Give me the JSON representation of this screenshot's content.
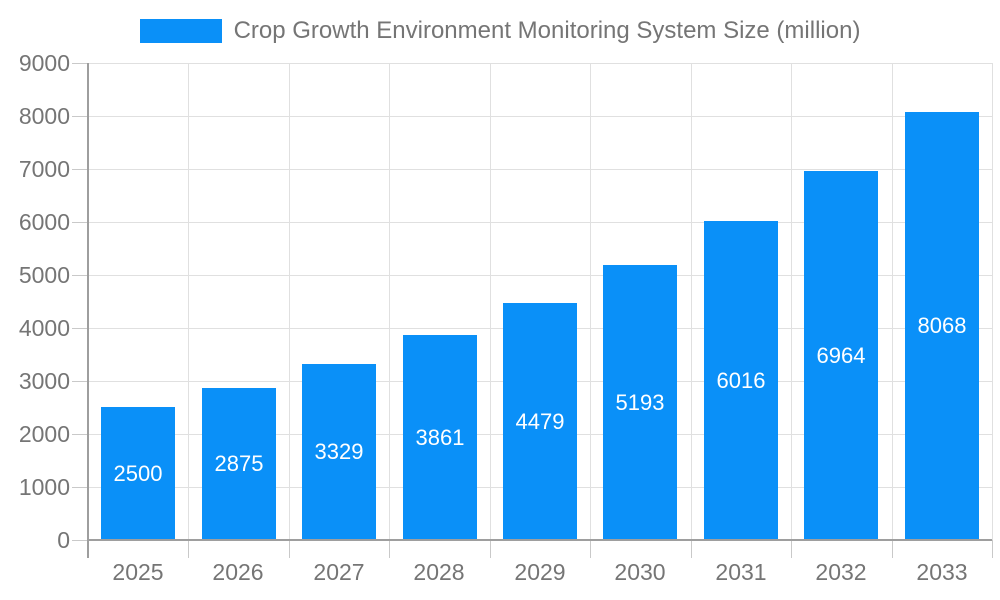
{
  "legend": {
    "label": "Crop Growth Environment Monitoring System Size (million)"
  },
  "chart_data": {
    "type": "bar",
    "title": "Crop Growth Environment Monitoring System Size (million)",
    "categories": [
      "2025",
      "2026",
      "2027",
      "2028",
      "2029",
      "2030",
      "2031",
      "2032",
      "2033"
    ],
    "values": [
      2500,
      2875,
      3329,
      3861,
      4479,
      5193,
      6016,
      6964,
      8068
    ],
    "xlabel": "",
    "ylabel": "",
    "ylim": [
      0,
      9000
    ],
    "ytick_step": 1000,
    "grid": "on",
    "legend_position": "top",
    "value_labels": "inside-center"
  },
  "colors": {
    "bar": "#0a90f8",
    "value_label": "#ffffff",
    "axis_text": "#757575",
    "grid_line": "#e0e0e0",
    "axis_line": "#9e9e9e",
    "tick_line": "#c9c9c9",
    "background": "#ffffff"
  }
}
